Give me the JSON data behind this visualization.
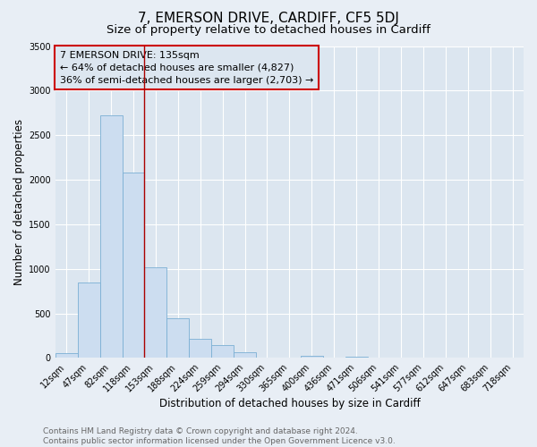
{
  "title": "7, EMERSON DRIVE, CARDIFF, CF5 5DJ",
  "subtitle": "Size of property relative to detached houses in Cardiff",
  "xlabel": "Distribution of detached houses by size in Cardiff",
  "ylabel": "Number of detached properties",
  "bar_labels": [
    "12sqm",
    "47sqm",
    "82sqm",
    "118sqm",
    "153sqm",
    "188sqm",
    "224sqm",
    "259sqm",
    "294sqm",
    "330sqm",
    "365sqm",
    "400sqm",
    "436sqm",
    "471sqm",
    "506sqm",
    "541sqm",
    "577sqm",
    "612sqm",
    "647sqm",
    "683sqm",
    "718sqm"
  ],
  "bar_values": [
    55,
    850,
    2720,
    2080,
    1020,
    450,
    215,
    145,
    60,
    0,
    0,
    25,
    0,
    15,
    0,
    0,
    0,
    0,
    0,
    0,
    0
  ],
  "bar_color": "#ccddf0",
  "bar_edge_color": "#7bafd4",
  "ylim": [
    0,
    3500
  ],
  "yticks": [
    0,
    500,
    1000,
    1500,
    2000,
    2500,
    3000,
    3500
  ],
  "vline_pos": 3.5,
  "vline_color": "#aa0000",
  "annotation_title": "7 EMERSON DRIVE: 135sqm",
  "annotation_line1": "← 64% of detached houses are smaller (4,827)",
  "annotation_line2": "36% of semi-detached houses are larger (2,703) →",
  "annotation_box_color": "#cc0000",
  "footer_line1": "Contains HM Land Registry data © Crown copyright and database right 2024.",
  "footer_line2": "Contains public sector information licensed under the Open Government Licence v3.0.",
  "background_color": "#e8eef5",
  "plot_bg_color": "#dce6f0",
  "grid_color": "#ffffff",
  "title_fontsize": 11,
  "subtitle_fontsize": 9.5,
  "axis_label_fontsize": 8.5,
  "tick_fontsize": 7,
  "annotation_fontsize": 8,
  "footer_fontsize": 6.5
}
